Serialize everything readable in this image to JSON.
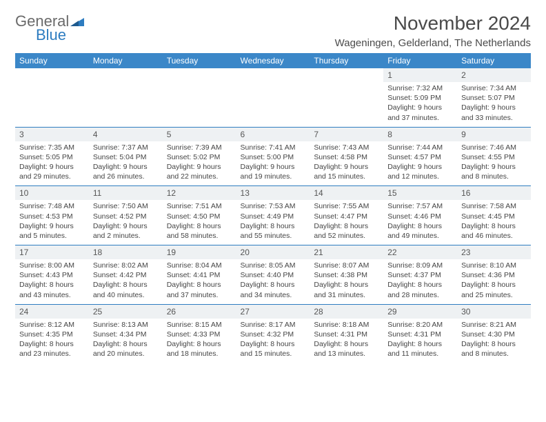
{
  "logo": {
    "word1": "General",
    "word2": "Blue"
  },
  "title": "November 2024",
  "location": "Wageningen, Gelderland, The Netherlands",
  "colors": {
    "header_bg": "#3b87c8",
    "header_text": "#ffffff",
    "daynum_bg": "#eef1f3",
    "divider": "#2d7cc0",
    "logo_gray": "#6a6a6a",
    "logo_blue": "#2d7cc0",
    "text": "#444444",
    "background": "#ffffff"
  },
  "typography": {
    "title_fontsize": 28,
    "location_fontsize": 15,
    "weekday_fontsize": 12,
    "daynum_fontsize": 12,
    "body_fontsize": 10.5
  },
  "weekdays": [
    "Sunday",
    "Monday",
    "Tuesday",
    "Wednesday",
    "Thursday",
    "Friday",
    "Saturday"
  ],
  "weeks": [
    [
      null,
      null,
      null,
      null,
      null,
      {
        "n": "1",
        "sunrise": "7:32 AM",
        "sunset": "5:09 PM",
        "daylight": "9 hours and 37 minutes."
      },
      {
        "n": "2",
        "sunrise": "7:34 AM",
        "sunset": "5:07 PM",
        "daylight": "9 hours and 33 minutes."
      }
    ],
    [
      {
        "n": "3",
        "sunrise": "7:35 AM",
        "sunset": "5:05 PM",
        "daylight": "9 hours and 29 minutes."
      },
      {
        "n": "4",
        "sunrise": "7:37 AM",
        "sunset": "5:04 PM",
        "daylight": "9 hours and 26 minutes."
      },
      {
        "n": "5",
        "sunrise": "7:39 AM",
        "sunset": "5:02 PM",
        "daylight": "9 hours and 22 minutes."
      },
      {
        "n": "6",
        "sunrise": "7:41 AM",
        "sunset": "5:00 PM",
        "daylight": "9 hours and 19 minutes."
      },
      {
        "n": "7",
        "sunrise": "7:43 AM",
        "sunset": "4:58 PM",
        "daylight": "9 hours and 15 minutes."
      },
      {
        "n": "8",
        "sunrise": "7:44 AM",
        "sunset": "4:57 PM",
        "daylight": "9 hours and 12 minutes."
      },
      {
        "n": "9",
        "sunrise": "7:46 AM",
        "sunset": "4:55 PM",
        "daylight": "9 hours and 8 minutes."
      }
    ],
    [
      {
        "n": "10",
        "sunrise": "7:48 AM",
        "sunset": "4:53 PM",
        "daylight": "9 hours and 5 minutes."
      },
      {
        "n": "11",
        "sunrise": "7:50 AM",
        "sunset": "4:52 PM",
        "daylight": "9 hours and 2 minutes."
      },
      {
        "n": "12",
        "sunrise": "7:51 AM",
        "sunset": "4:50 PM",
        "daylight": "8 hours and 58 minutes."
      },
      {
        "n": "13",
        "sunrise": "7:53 AM",
        "sunset": "4:49 PM",
        "daylight": "8 hours and 55 minutes."
      },
      {
        "n": "14",
        "sunrise": "7:55 AM",
        "sunset": "4:47 PM",
        "daylight": "8 hours and 52 minutes."
      },
      {
        "n": "15",
        "sunrise": "7:57 AM",
        "sunset": "4:46 PM",
        "daylight": "8 hours and 49 minutes."
      },
      {
        "n": "16",
        "sunrise": "7:58 AM",
        "sunset": "4:45 PM",
        "daylight": "8 hours and 46 minutes."
      }
    ],
    [
      {
        "n": "17",
        "sunrise": "8:00 AM",
        "sunset": "4:43 PM",
        "daylight": "8 hours and 43 minutes."
      },
      {
        "n": "18",
        "sunrise": "8:02 AM",
        "sunset": "4:42 PM",
        "daylight": "8 hours and 40 minutes."
      },
      {
        "n": "19",
        "sunrise": "8:04 AM",
        "sunset": "4:41 PM",
        "daylight": "8 hours and 37 minutes."
      },
      {
        "n": "20",
        "sunrise": "8:05 AM",
        "sunset": "4:40 PM",
        "daylight": "8 hours and 34 minutes."
      },
      {
        "n": "21",
        "sunrise": "8:07 AM",
        "sunset": "4:38 PM",
        "daylight": "8 hours and 31 minutes."
      },
      {
        "n": "22",
        "sunrise": "8:09 AM",
        "sunset": "4:37 PM",
        "daylight": "8 hours and 28 minutes."
      },
      {
        "n": "23",
        "sunrise": "8:10 AM",
        "sunset": "4:36 PM",
        "daylight": "8 hours and 25 minutes."
      }
    ],
    [
      {
        "n": "24",
        "sunrise": "8:12 AM",
        "sunset": "4:35 PM",
        "daylight": "8 hours and 23 minutes."
      },
      {
        "n": "25",
        "sunrise": "8:13 AM",
        "sunset": "4:34 PM",
        "daylight": "8 hours and 20 minutes."
      },
      {
        "n": "26",
        "sunrise": "8:15 AM",
        "sunset": "4:33 PM",
        "daylight": "8 hours and 18 minutes."
      },
      {
        "n": "27",
        "sunrise": "8:17 AM",
        "sunset": "4:32 PM",
        "daylight": "8 hours and 15 minutes."
      },
      {
        "n": "28",
        "sunrise": "8:18 AM",
        "sunset": "4:31 PM",
        "daylight": "8 hours and 13 minutes."
      },
      {
        "n": "29",
        "sunrise": "8:20 AM",
        "sunset": "4:31 PM",
        "daylight": "8 hours and 11 minutes."
      },
      {
        "n": "30",
        "sunrise": "8:21 AM",
        "sunset": "4:30 PM",
        "daylight": "8 hours and 8 minutes."
      }
    ]
  ],
  "labels": {
    "sunrise": "Sunrise:",
    "sunset": "Sunset:",
    "daylight": "Daylight:"
  }
}
